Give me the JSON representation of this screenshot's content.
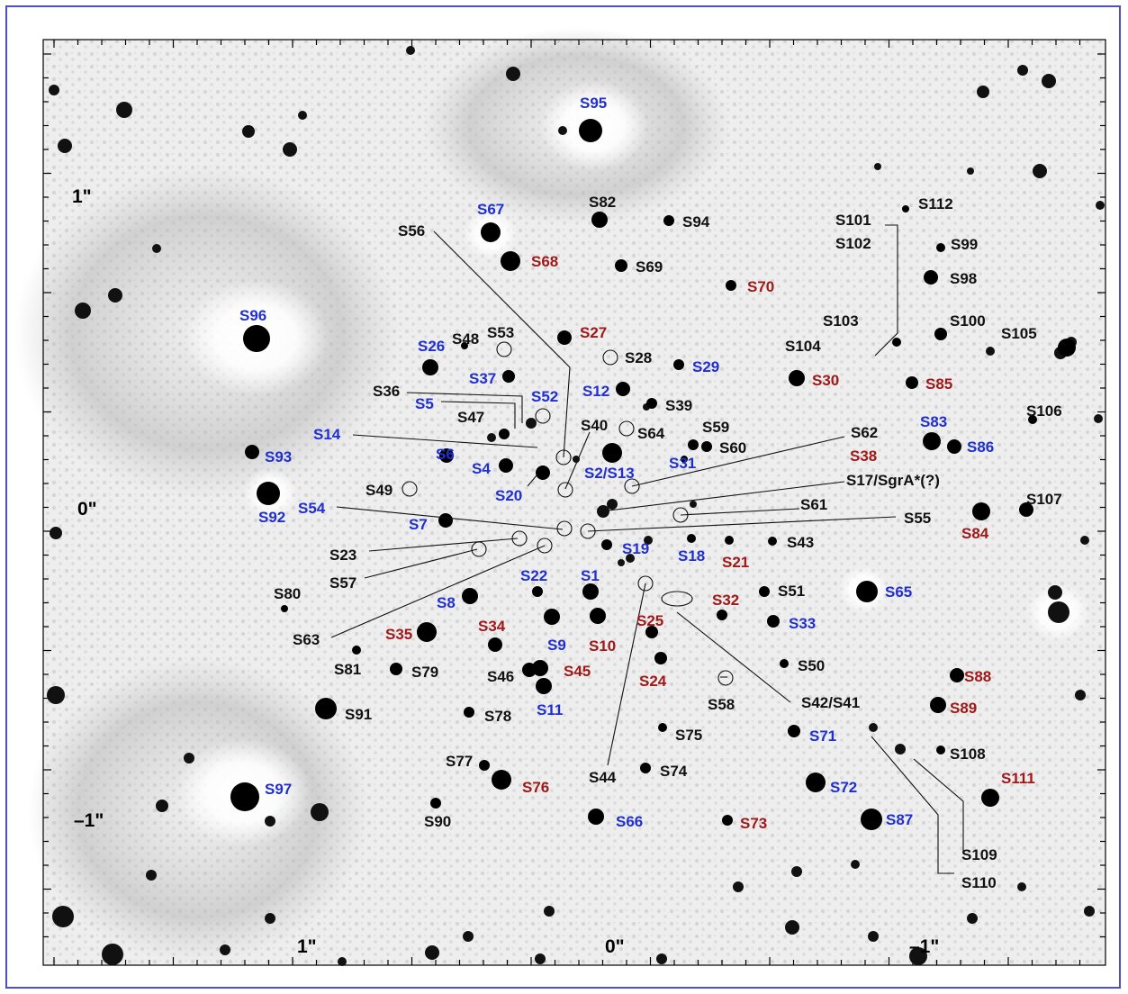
{
  "colors": {
    "frame": "#4f4fc4",
    "black_label": "#111111",
    "blue_label": "#1f2fd0",
    "red_label": "#a01818",
    "star": "#000000",
    "background": "#f2f2f2"
  },
  "axis_labels": {
    "y_top": "1\"",
    "y_mid": "0\"",
    "y_bottom": "–1\"",
    "x_left": "1\"",
    "x_mid": "0\"",
    "x_right": "–1\""
  },
  "star_labels": [
    {
      "text": "S95",
      "color": "blue"
    },
    {
      "text": "S67",
      "color": "blue"
    },
    {
      "text": "S82",
      "color": "black"
    },
    {
      "text": "S94",
      "color": "black"
    },
    {
      "text": "S56",
      "color": "black"
    },
    {
      "text": "S68",
      "color": "red"
    },
    {
      "text": "S69",
      "color": "black"
    },
    {
      "text": "S70",
      "color": "red"
    },
    {
      "text": "S101",
      "color": "black"
    },
    {
      "text": "S102",
      "color": "black"
    },
    {
      "text": "S112",
      "color": "black"
    },
    {
      "text": "S99",
      "color": "black"
    },
    {
      "text": "S98",
      "color": "black"
    },
    {
      "text": "S96",
      "color": "blue"
    },
    {
      "text": "S103",
      "color": "black"
    },
    {
      "text": "S100",
      "color": "black"
    },
    {
      "text": "S105",
      "color": "black"
    },
    {
      "text": "S48",
      "color": "black"
    },
    {
      "text": "S53",
      "color": "black"
    },
    {
      "text": "S27",
      "color": "red"
    },
    {
      "text": "S26",
      "color": "blue"
    },
    {
      "text": "S28",
      "color": "black"
    },
    {
      "text": "S29",
      "color": "blue"
    },
    {
      "text": "S104",
      "color": "black"
    },
    {
      "text": "S30",
      "color": "red"
    },
    {
      "text": "S85",
      "color": "red"
    },
    {
      "text": "S37",
      "color": "blue"
    },
    {
      "text": "S36",
      "color": "black"
    },
    {
      "text": "S52",
      "color": "blue"
    },
    {
      "text": "S12",
      "color": "blue"
    },
    {
      "text": "S5",
      "color": "blue"
    },
    {
      "text": "S39",
      "color": "black"
    },
    {
      "text": "S47",
      "color": "black"
    },
    {
      "text": "S40",
      "color": "black"
    },
    {
      "text": "S64",
      "color": "black"
    },
    {
      "text": "S59",
      "color": "black"
    },
    {
      "text": "S106",
      "color": "black"
    },
    {
      "text": "S14",
      "color": "blue"
    },
    {
      "text": "S62",
      "color": "black"
    },
    {
      "text": "S83",
      "color": "blue"
    },
    {
      "text": "S60",
      "color": "black"
    },
    {
      "text": "S86",
      "color": "blue"
    },
    {
      "text": "S93",
      "color": "blue"
    },
    {
      "text": "S6",
      "color": "blue"
    },
    {
      "text": "S38",
      "color": "red"
    },
    {
      "text": "S4",
      "color": "blue"
    },
    {
      "text": "S2/S13",
      "color": "blue"
    },
    {
      "text": "S31",
      "color": "blue"
    },
    {
      "text": "S17/SgrA*(?)",
      "color": "black"
    },
    {
      "text": "S20",
      "color": "blue"
    },
    {
      "text": "S49",
      "color": "black"
    },
    {
      "text": "S92",
      "color": "blue"
    },
    {
      "text": "S54",
      "color": "blue"
    },
    {
      "text": "S61",
      "color": "black"
    },
    {
      "text": "S107",
      "color": "black"
    },
    {
      "text": "S7",
      "color": "blue"
    },
    {
      "text": "S55",
      "color": "black"
    },
    {
      "text": "S84",
      "color": "red"
    },
    {
      "text": "S23",
      "color": "black"
    },
    {
      "text": "S19",
      "color": "blue"
    },
    {
      "text": "S18",
      "color": "blue"
    },
    {
      "text": "S21",
      "color": "red"
    },
    {
      "text": "S43",
      "color": "black"
    },
    {
      "text": "S57",
      "color": "black"
    },
    {
      "text": "S22",
      "color": "blue"
    },
    {
      "text": "S1",
      "color": "blue"
    },
    {
      "text": "S80",
      "color": "black"
    },
    {
      "text": "S51",
      "color": "black"
    },
    {
      "text": "S65",
      "color": "blue"
    },
    {
      "text": "S8",
      "color": "blue"
    },
    {
      "text": "S32",
      "color": "red"
    },
    {
      "text": "S25",
      "color": "red"
    },
    {
      "text": "S34",
      "color": "red"
    },
    {
      "text": "S33",
      "color": "blue"
    },
    {
      "text": "S35",
      "color": "red"
    },
    {
      "text": "S63",
      "color": "black"
    },
    {
      "text": "S9",
      "color": "blue"
    },
    {
      "text": "S10",
      "color": "red"
    },
    {
      "text": "S50",
      "color": "black"
    },
    {
      "text": "S81",
      "color": "black"
    },
    {
      "text": "S79",
      "color": "black"
    },
    {
      "text": "S46",
      "color": "black"
    },
    {
      "text": "S45",
      "color": "red"
    },
    {
      "text": "S24",
      "color": "red"
    },
    {
      "text": "S88",
      "color": "red"
    },
    {
      "text": "S42/S41",
      "color": "black"
    },
    {
      "text": "S58",
      "color": "black"
    },
    {
      "text": "S91",
      "color": "black"
    },
    {
      "text": "S78",
      "color": "black"
    },
    {
      "text": "S11",
      "color": "blue"
    },
    {
      "text": "S89",
      "color": "red"
    },
    {
      "text": "S75",
      "color": "black"
    },
    {
      "text": "S71",
      "color": "blue"
    },
    {
      "text": "S77",
      "color": "black"
    },
    {
      "text": "S108",
      "color": "black"
    },
    {
      "text": "S74",
      "color": "black"
    },
    {
      "text": "S44",
      "color": "black"
    },
    {
      "text": "S76",
      "color": "red"
    },
    {
      "text": "S111",
      "color": "red"
    },
    {
      "text": "S97",
      "color": "blue"
    },
    {
      "text": "S72",
      "color": "blue"
    },
    {
      "text": "S87",
      "color": "blue"
    },
    {
      "text": "S66",
      "color": "blue"
    },
    {
      "text": "S73",
      "color": "red"
    },
    {
      "text": "S90",
      "color": "black"
    },
    {
      "text": "S109",
      "color": "black"
    },
    {
      "text": "S110",
      "color": "black"
    }
  ]
}
